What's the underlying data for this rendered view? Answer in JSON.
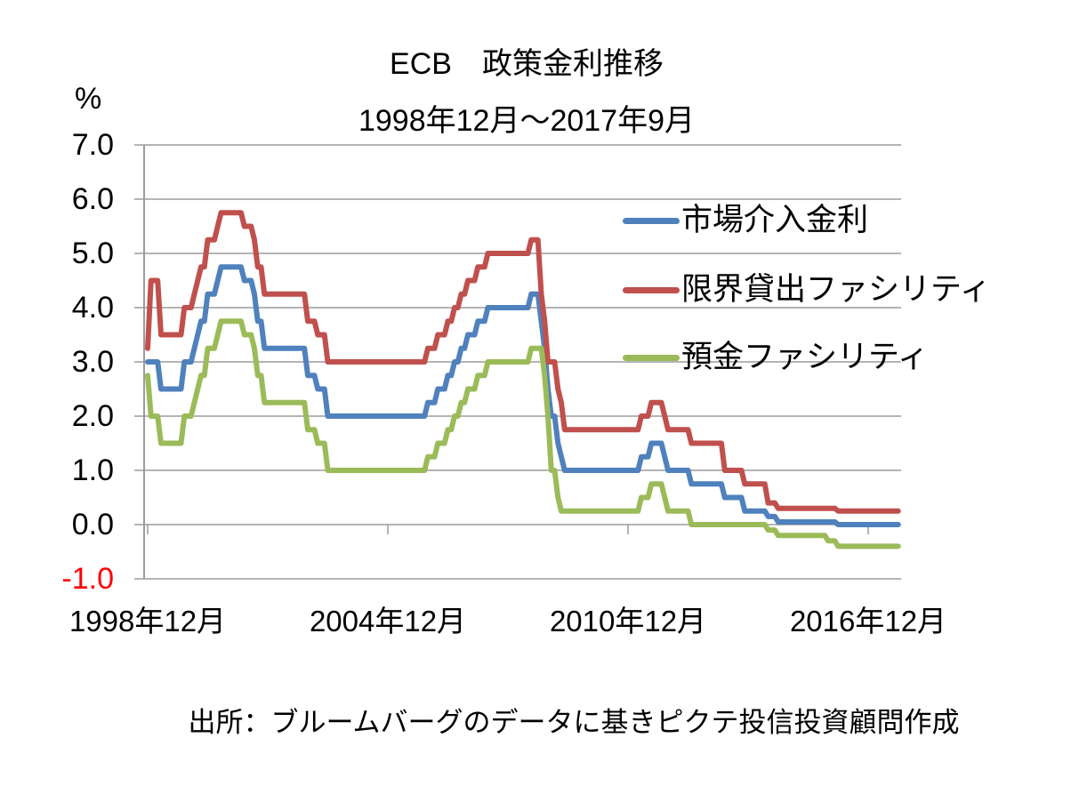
{
  "chart": {
    "title": "ECB　政策金利推移",
    "subtitle": "1998年12月～2017年9月",
    "y_axis_unit": "%",
    "source": "出所：ブルームバーグのデータに基きピクテ投信投資顧問作成",
    "chart_data": {
      "type": "line",
      "title": "ECB　政策金利推移",
      "subtitle": "1998年12月～2017年9月",
      "ylabel": "%",
      "ylim": [
        -1.0,
        7.0
      ],
      "grid": true,
      "legend_position": "inside-top-right",
      "x_unit": "months since 1998-12",
      "x_range": [
        0,
        225
      ],
      "x_ticks": [
        {
          "label": "1998年12月",
          "month": 0
        },
        {
          "label": "2004年12月",
          "month": 72
        },
        {
          "label": "2010年12月",
          "month": 144
        },
        {
          "label": "2016年12月",
          "month": 216
        }
      ],
      "y_ticks": [
        {
          "label": "7.0",
          "value": 7,
          "color": "#000000"
        },
        {
          "label": "6.0",
          "value": 6,
          "color": "#000000"
        },
        {
          "label": "5.0",
          "value": 5,
          "color": "#000000"
        },
        {
          "label": "4.0",
          "value": 4,
          "color": "#000000"
        },
        {
          "label": "3.0",
          "value": 3,
          "color": "#000000"
        },
        {
          "label": "2.0",
          "value": 2,
          "color": "#000000"
        },
        {
          "label": "1.0",
          "value": 1,
          "color": "#000000"
        },
        {
          "label": "0.0",
          "value": 0,
          "color": "#000000"
        },
        {
          "label": "-1.0",
          "value": -1,
          "color": "#FF0000"
        }
      ],
      "grid_color": "#9B9B9B",
      "series": [
        {
          "name": "市場介入金利",
          "color": "#4F81BD",
          "steps": [
            [
              0,
              3.0
            ],
            [
              4,
              2.5
            ],
            [
              11,
              3.0
            ],
            [
              14,
              3.25
            ],
            [
              15,
              3.5
            ],
            [
              16,
              3.75
            ],
            [
              18,
              4.25
            ],
            [
              21,
              4.5
            ],
            [
              22,
              4.75
            ],
            [
              29,
              4.5
            ],
            [
              32,
              4.25
            ],
            [
              33,
              3.75
            ],
            [
              35,
              3.25
            ],
            [
              48,
              2.75
            ],
            [
              51,
              2.5
            ],
            [
              54,
              2.0
            ],
            [
              84,
              2.25
            ],
            [
              87,
              2.5
            ],
            [
              90,
              2.75
            ],
            [
              92,
              3.0
            ],
            [
              94,
              3.25
            ],
            [
              96,
              3.5
            ],
            [
              99,
              3.75
            ],
            [
              102,
              4.0
            ],
            [
              115,
              4.25
            ],
            [
              118,
              3.75
            ],
            [
              119,
              3.25
            ],
            [
              120,
              2.5
            ],
            [
              121,
              2.0
            ],
            [
              123,
              1.5
            ],
            [
              124,
              1.25
            ],
            [
              125,
              1.0
            ],
            [
              148,
              1.25
            ],
            [
              151,
              1.5
            ],
            [
              155,
              1.25
            ],
            [
              156,
              1.0
            ],
            [
              163,
              0.75
            ],
            [
              173,
              0.5
            ],
            [
              179,
              0.25
            ],
            [
              186,
              0.15
            ],
            [
              189,
              0.05
            ],
            [
              207,
              0.0
            ]
          ]
        },
        {
          "name": "限界貸出ファシリティ",
          "color": "#C0504D",
          "steps": [
            [
              0,
              3.25
            ],
            [
              1,
              4.5
            ],
            [
              4,
              3.5
            ],
            [
              11,
              4.0
            ],
            [
              14,
              4.25
            ],
            [
              15,
              4.5
            ],
            [
              16,
              4.75
            ],
            [
              18,
              5.25
            ],
            [
              21,
              5.5
            ],
            [
              22,
              5.75
            ],
            [
              29,
              5.5
            ],
            [
              32,
              5.25
            ],
            [
              33,
              4.75
            ],
            [
              35,
              4.25
            ],
            [
              48,
              3.75
            ],
            [
              51,
              3.5
            ],
            [
              54,
              3.0
            ],
            [
              84,
              3.25
            ],
            [
              87,
              3.5
            ],
            [
              90,
              3.75
            ],
            [
              92,
              4.0
            ],
            [
              94,
              4.25
            ],
            [
              96,
              4.5
            ],
            [
              99,
              4.75
            ],
            [
              102,
              5.0
            ],
            [
              115,
              5.25
            ],
            [
              118,
              4.25
            ],
            [
              119,
              3.75
            ],
            [
              120,
              3.0
            ],
            [
              123,
              2.5
            ],
            [
              124,
              2.25
            ],
            [
              125,
              1.75
            ],
            [
              148,
              2.0
            ],
            [
              151,
              2.25
            ],
            [
              155,
              2.0
            ],
            [
              156,
              1.75
            ],
            [
              163,
              1.5
            ],
            [
              173,
              1.0
            ],
            [
              179,
              0.75
            ],
            [
              186,
              0.4
            ],
            [
              189,
              0.3
            ],
            [
              207,
              0.25
            ]
          ]
        },
        {
          "name": "預金ファシリティ",
          "color": "#9BBB59",
          "steps": [
            [
              0,
              2.75
            ],
            [
              1,
              2.0
            ],
            [
              4,
              1.5
            ],
            [
              11,
              2.0
            ],
            [
              14,
              2.25
            ],
            [
              15,
              2.5
            ],
            [
              16,
              2.75
            ],
            [
              18,
              3.25
            ],
            [
              21,
              3.5
            ],
            [
              22,
              3.75
            ],
            [
              29,
              3.5
            ],
            [
              32,
              3.25
            ],
            [
              33,
              2.75
            ],
            [
              35,
              2.25
            ],
            [
              48,
              1.75
            ],
            [
              51,
              1.5
            ],
            [
              54,
              1.0
            ],
            [
              84,
              1.25
            ],
            [
              87,
              1.5
            ],
            [
              90,
              1.75
            ],
            [
              92,
              2.0
            ],
            [
              94,
              2.25
            ],
            [
              96,
              2.5
            ],
            [
              99,
              2.75
            ],
            [
              102,
              3.0
            ],
            [
              115,
              3.25
            ],
            [
              119,
              2.75
            ],
            [
              120,
              2.0
            ],
            [
              121,
              1.0
            ],
            [
              123,
              0.5
            ],
            [
              124,
              0.25
            ],
            [
              148,
              0.5
            ],
            [
              151,
              0.75
            ],
            [
              155,
              0.5
            ],
            [
              156,
              0.25
            ],
            [
              163,
              0.0
            ],
            [
              186,
              -0.1
            ],
            [
              189,
              -0.2
            ],
            [
              204,
              -0.3
            ],
            [
              207,
              -0.4
            ]
          ]
        }
      ]
    }
  }
}
